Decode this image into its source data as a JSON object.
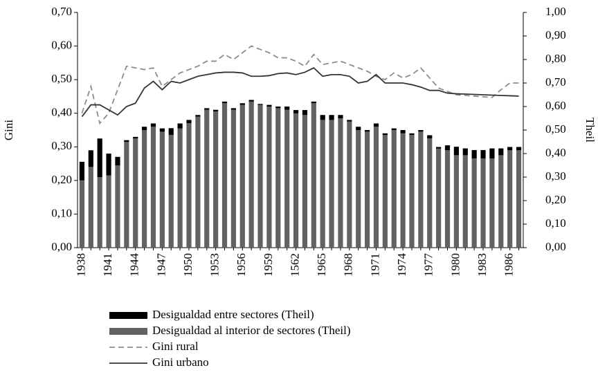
{
  "chart_data": {
    "type": "bar",
    "y_label": "Gini",
    "y2_label": "Theil",
    "categories": [
      "1938",
      null,
      null,
      "1941",
      null,
      null,
      "1944",
      null,
      null,
      "1947",
      null,
      null,
      "1950",
      null,
      null,
      "1953",
      null,
      null,
      "1956",
      null,
      null,
      "1959",
      null,
      null,
      "1562",
      null,
      null,
      "1965",
      null,
      null,
      "1968",
      null,
      null,
      "1971",
      null,
      null,
      "1974",
      null,
      null,
      "1977",
      null,
      null,
      "1980",
      null,
      null,
      "1983",
      null,
      null,
      "1986",
      null
    ],
    "ylim": [
      0,
      0.7
    ],
    "yticks": [
      {
        "value": 0,
        "label": "0,00"
      },
      {
        "value": 0.1,
        "label": "0,10"
      },
      {
        "value": 0.2,
        "label": "0,20"
      },
      {
        "value": 0.3,
        "label": "0,30"
      },
      {
        "value": 0.4,
        "label": "0,40"
      },
      {
        "value": 0.5,
        "label": "0,50"
      },
      {
        "value": 0.6,
        "label": "0,60"
      },
      {
        "value": 0.7,
        "label": "0,70"
      }
    ],
    "y2lim": [
      0,
      1
    ],
    "y2ticks": [
      {
        "value": 0,
        "label": "0,00"
      },
      {
        "value": 0.1,
        "label": "0,10"
      },
      {
        "value": 0.2,
        "label": "0,20"
      },
      {
        "value": 0.3,
        "label": "0,30"
      },
      {
        "value": 0.4,
        "label": "0,40"
      },
      {
        "value": 0.5,
        "label": "0,50"
      },
      {
        "value": 0.6,
        "label": "0,60"
      },
      {
        "value": 0.7,
        "label": "0,70"
      },
      {
        "value": 0.8,
        "label": "0,80"
      },
      {
        "value": 0.9,
        "label": "0,90"
      },
      {
        "value": 1,
        "label": "1,00"
      }
    ],
    "series": [
      {
        "name": "Desigualdad entre sectores (Theil)",
        "type": "bar",
        "axis": "y2",
        "stack": true,
        "color": "#000000",
        "values": [
          0.079,
          0.071,
          0.164,
          0.093,
          0.036,
          0.007,
          0.007,
          0.014,
          0.014,
          0.014,
          0.029,
          0.021,
          0.014,
          0.007,
          0.007,
          0.007,
          0.007,
          0.007,
          0.007,
          0.007,
          0.004,
          0.007,
          0.007,
          0.014,
          0.014,
          0.021,
          0.007,
          0.021,
          0.021,
          0.014,
          0.007,
          0.014,
          0.007,
          0.014,
          0.007,
          0.007,
          0.014,
          0.007,
          0.007,
          0.014,
          0.007,
          0.021,
          0.036,
          0.029,
          0.036,
          0.036,
          0.043,
          0.029,
          0.014,
          0.014
        ]
      },
      {
        "name": "Desigualdad al interior de sectores (Theil)",
        "type": "bar",
        "axis": "y2",
        "color": "#626262",
        "values": [
          0.286,
          0.343,
          0.3,
          0.307,
          0.35,
          0.45,
          0.464,
          0.5,
          0.514,
          0.493,
          0.479,
          0.507,
          0.529,
          0.557,
          0.586,
          0.579,
          0.614,
          0.586,
          0.607,
          0.621,
          0.607,
          0.6,
          0.593,
          0.586,
          0.571,
          0.564,
          0.614,
          0.543,
          0.543,
          0.55,
          0.536,
          0.5,
          0.493,
          0.514,
          0.479,
          0.5,
          0.486,
          0.479,
          0.493,
          0.464,
          0.421,
          0.414,
          0.393,
          0.393,
          0.379,
          0.379,
          0.379,
          0.393,
          0.414,
          0.414
        ]
      },
      {
        "name": "Gini rural",
        "type": "line",
        "dashed": true,
        "color": "#8c8c8c",
        "values": [
          0.4,
          0.48,
          0.37,
          0.4,
          0.47,
          0.54,
          0.535,
          0.53,
          0.535,
          0.48,
          0.5,
          0.52,
          0.53,
          0.54,
          0.555,
          0.555,
          0.575,
          0.56,
          0.58,
          0.6,
          0.59,
          0.58,
          0.565,
          0.565,
          0.555,
          0.54,
          0.575,
          0.545,
          0.55,
          0.555,
          0.545,
          0.535,
          0.525,
          0.51,
          0.5,
          0.52,
          0.505,
          0.515,
          0.535,
          0.505,
          0.475,
          0.465,
          0.455,
          0.453,
          0.451,
          0.449,
          0.447,
          0.47,
          0.49,
          0.49
        ]
      },
      {
        "name": "Gini urbano",
        "type": "line",
        "color": "#333333",
        "values": [
          0.39,
          0.425,
          0.425,
          0.41,
          0.395,
          0.42,
          0.43,
          0.475,
          0.495,
          0.47,
          0.495,
          0.49,
          0.5,
          0.51,
          0.515,
          0.52,
          0.522,
          0.522,
          0.52,
          0.51,
          0.51,
          0.512,
          0.518,
          0.52,
          0.515,
          0.522,
          0.535,
          0.51,
          0.515,
          0.515,
          0.51,
          0.49,
          0.495,
          0.515,
          0.49,
          0.49,
          0.49,
          0.485,
          0.478,
          0.468,
          0.468,
          0.46,
          0.458,
          0.457,
          0.456,
          0.455,
          0.454,
          0.453,
          0.452,
          0.451
        ]
      }
    ]
  }
}
